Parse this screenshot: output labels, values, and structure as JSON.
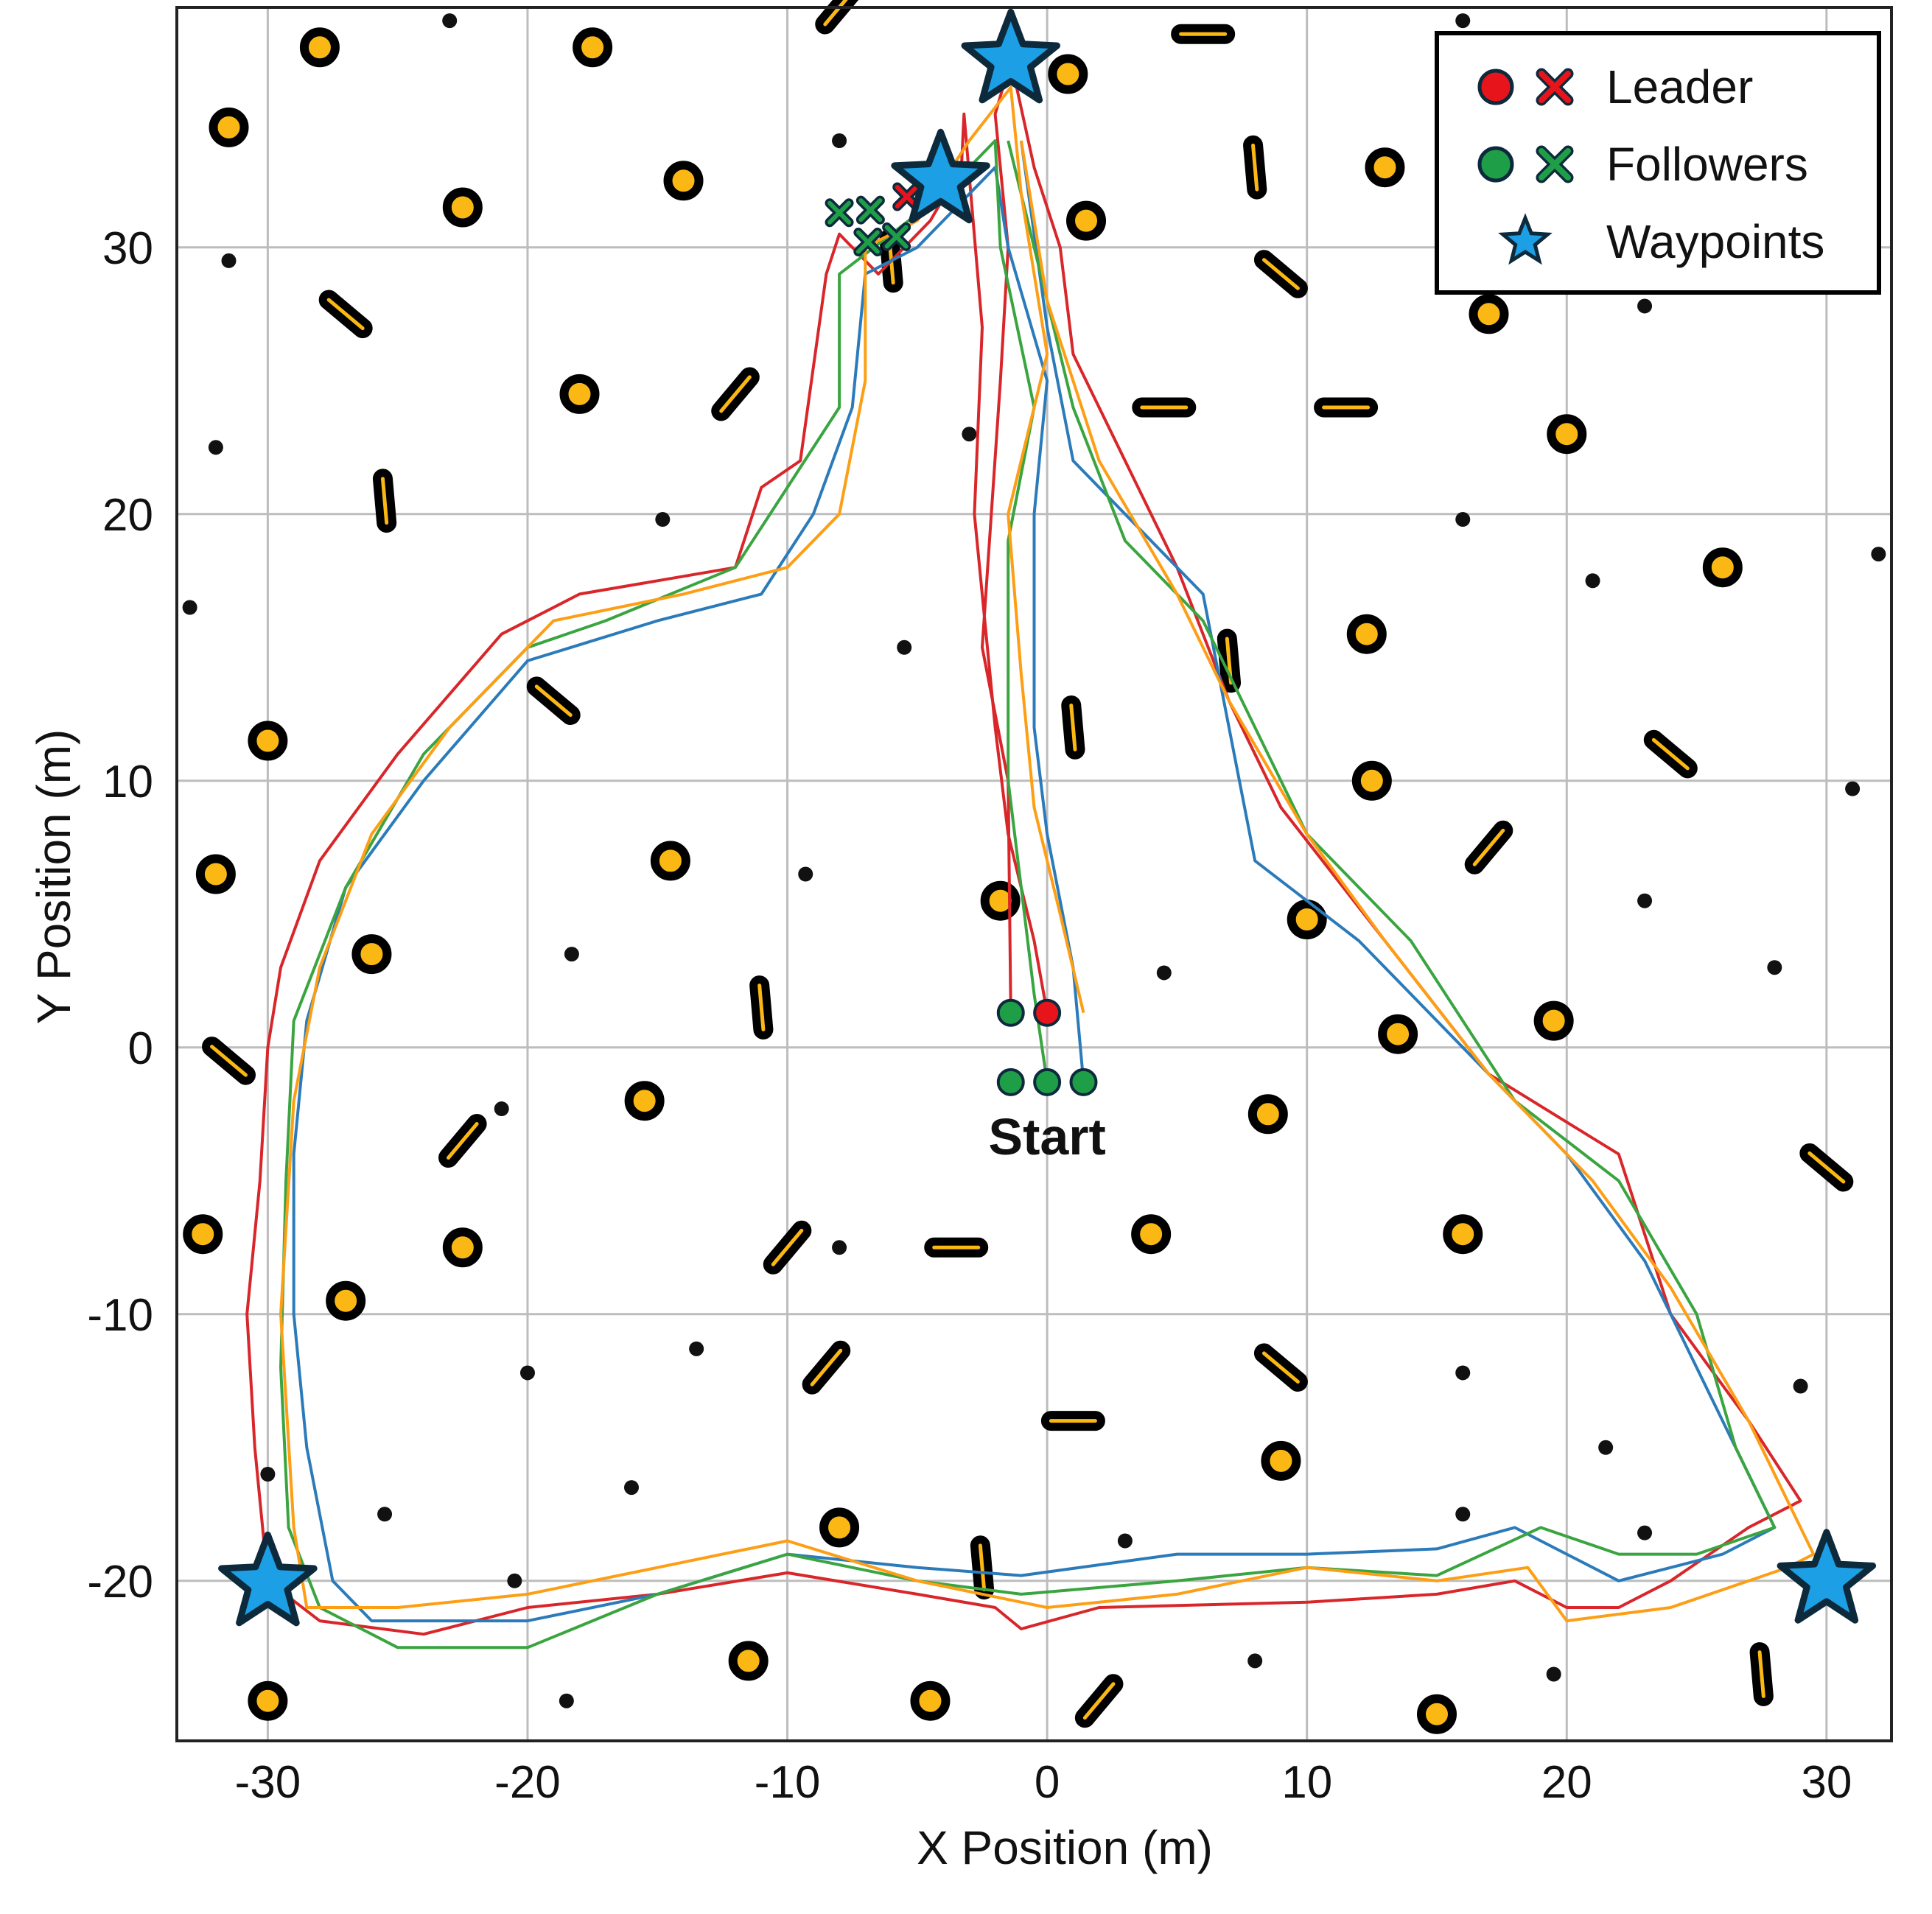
{
  "chart_data": {
    "type": "line",
    "title": "",
    "xlabel": "X Position (m)",
    "ylabel": "Y Position (m)",
    "xlim": [
      -33.5,
      32.5
    ],
    "ylim": [
      -26,
      39
    ],
    "xticks": [
      -30,
      -20,
      -10,
      0,
      10,
      20,
      30
    ],
    "yticks": [
      -20,
      -10,
      0,
      10,
      20,
      30
    ],
    "grid": true,
    "legend": {
      "placement": "top-right",
      "entries": [
        {
          "label": "Leader",
          "marker": "circle+cross",
          "color": "#e8141c"
        },
        {
          "label": "Followers",
          "marker": "circle+cross",
          "color": "#1f9e48"
        },
        {
          "label": "Waypoints",
          "marker": "star",
          "color": "#1c9fe4"
        }
      ]
    },
    "annotations": [
      {
        "text": "Start",
        "x": 0,
        "y": -3.4
      }
    ],
    "colors": {
      "leader": "#e8141c",
      "follower": "#1f9e48",
      "waypoint": "#1c9fe4",
      "obstacle": "#fbb814",
      "outline": "#000000",
      "star_edge": "#0d2a3c",
      "blue_path": "#2b7bba",
      "orange_path": "#fd9e14",
      "green_path": "#3aa540",
      "red_path": "#d8262a",
      "grid": "#bdbdbd"
    },
    "waypoints": [
      [
        -1.4,
        37.0
      ],
      [
        -4.1,
        32.5
      ],
      [
        -30.0,
        -20.1
      ],
      [
        30.0,
        -20.0
      ]
    ],
    "start_markers": {
      "leader": [
        [
          0.0,
          1.3
        ]
      ],
      "followers": [
        [
          -1.4,
          1.3
        ],
        [
          -1.4,
          -1.3
        ],
        [
          0.0,
          -1.3
        ],
        [
          1.4,
          -1.3
        ]
      ]
    },
    "end_markers": {
      "leader": [
        [
          -5.4,
          31.9
        ]
      ],
      "followers": [
        [
          -8.0,
          31.3
        ],
        [
          -6.8,
          31.4
        ],
        [
          -6.9,
          30.2
        ],
        [
          -5.8,
          30.4
        ]
      ]
    },
    "series": [
      {
        "color": "#d8262a",
        "points": [
          [
            0.0,
            1.3
          ],
          [
            -0.5,
            4
          ],
          [
            -1.5,
            8
          ],
          [
            -2.0,
            12
          ],
          [
            -2.8,
            20
          ],
          [
            -2.5,
            27
          ],
          [
            -3.2,
            35
          ],
          [
            -3.3,
            33
          ],
          [
            -4.5,
            31
          ],
          [
            -6.5,
            29
          ],
          [
            -8.0,
            30.5
          ],
          [
            -8.5,
            29
          ],
          [
            -9.5,
            22
          ],
          [
            -11,
            21
          ],
          [
            -12,
            18
          ],
          [
            -18,
            17
          ],
          [
            -21,
            15.5
          ],
          [
            -25,
            11
          ],
          [
            -28,
            7
          ],
          [
            -29.5,
            3
          ],
          [
            -30,
            0
          ],
          [
            -30.3,
            -5
          ],
          [
            -30.8,
            -10
          ],
          [
            -30.5,
            -15
          ],
          [
            -30,
            -20
          ],
          [
            -28,
            -21.5
          ],
          [
            -24,
            -22
          ],
          [
            -20,
            -21
          ],
          [
            -15,
            -20.5
          ],
          [
            -10,
            -19.7
          ],
          [
            -5,
            -20.5
          ],
          [
            -2,
            -21
          ],
          [
            -1,
            -21.8
          ],
          [
            2,
            -21
          ],
          [
            10,
            -20.8
          ],
          [
            15,
            -20.5
          ],
          [
            18,
            -20
          ],
          [
            20,
            -21
          ],
          [
            22,
            -21
          ],
          [
            24,
            -20
          ],
          [
            27,
            -18
          ],
          [
            29,
            -17
          ],
          [
            27,
            -14
          ],
          [
            24,
            -10
          ],
          [
            22,
            -4
          ],
          [
            17,
            -1
          ],
          [
            13,
            4
          ],
          [
            9,
            9
          ],
          [
            7,
            13
          ],
          [
            5,
            18
          ],
          [
            3,
            22
          ],
          [
            1,
            26
          ],
          [
            0.5,
            30
          ],
          [
            -0.5,
            33
          ],
          [
            -1.4,
            37
          ],
          [
            -2,
            35
          ],
          [
            -1.5,
            30
          ],
          [
            -1.8,
            25
          ],
          [
            -2.5,
            15
          ],
          [
            -1.5,
            10
          ],
          [
            -1.4,
            1.3
          ]
        ]
      },
      {
        "color": "#2b7bba",
        "points": [
          [
            1.4,
            -1.3
          ],
          [
            1,
            3
          ],
          [
            0,
            8
          ],
          [
            -0.5,
            12
          ],
          [
            -0.5,
            20
          ],
          [
            0,
            25
          ],
          [
            -1.5,
            30
          ],
          [
            -2,
            33
          ],
          [
            -3.5,
            31.5
          ],
          [
            -5,
            30
          ],
          [
            -7,
            29
          ],
          [
            -7.5,
            24
          ],
          [
            -9,
            20
          ],
          [
            -11,
            17
          ],
          [
            -15,
            16
          ],
          [
            -20,
            14.5
          ],
          [
            -24,
            10
          ],
          [
            -27,
            6
          ],
          [
            -28.5,
            1
          ],
          [
            -29,
            -4
          ],
          [
            -29,
            -10
          ],
          [
            -28.5,
            -15
          ],
          [
            -27.5,
            -20
          ],
          [
            -26,
            -21.5
          ],
          [
            -20,
            -21.5
          ],
          [
            -15,
            -20.5
          ],
          [
            -10,
            -19
          ],
          [
            -5,
            -19.5
          ],
          [
            -1,
            -19.8
          ],
          [
            5,
            -19
          ],
          [
            10,
            -19
          ],
          [
            15,
            -18.8
          ],
          [
            18,
            -18
          ],
          [
            20,
            -19
          ],
          [
            22,
            -20
          ],
          [
            26,
            -19
          ],
          [
            28,
            -18
          ],
          [
            26,
            -14
          ],
          [
            23,
            -8
          ],
          [
            20,
            -4
          ],
          [
            16,
            0
          ],
          [
            12,
            4
          ],
          [
            8,
            7
          ],
          [
            7,
            12
          ],
          [
            6,
            17
          ],
          [
            3,
            20
          ],
          [
            1,
            22
          ],
          [
            0,
            27
          ],
          [
            -1,
            34
          ]
        ]
      },
      {
        "color": "#3aa540",
        "points": [
          [
            0,
            -1.3
          ],
          [
            -0.5,
            2
          ],
          [
            -1,
            6
          ],
          [
            -1.5,
            10
          ],
          [
            -1.5,
            19
          ],
          [
            -0.5,
            24
          ],
          [
            -1.8,
            30
          ],
          [
            -2,
            34
          ],
          [
            -4,
            32
          ],
          [
            -6,
            30.5
          ],
          [
            -8,
            29
          ],
          [
            -8,
            24
          ],
          [
            -10,
            21
          ],
          [
            -12,
            18
          ],
          [
            -17,
            16
          ],
          [
            -20,
            15
          ],
          [
            -24,
            11
          ],
          [
            -27,
            6
          ],
          [
            -29,
            1
          ],
          [
            -29.3,
            -5
          ],
          [
            -29.5,
            -12
          ],
          [
            -29.2,
            -18
          ],
          [
            -28,
            -21
          ],
          [
            -25,
            -22.5
          ],
          [
            -20,
            -22.5
          ],
          [
            -15,
            -20.5
          ],
          [
            -10,
            -19
          ],
          [
            -5,
            -20
          ],
          [
            -1,
            -20.5
          ],
          [
            5,
            -20
          ],
          [
            10,
            -19.5
          ],
          [
            15,
            -19.8
          ],
          [
            19,
            -18
          ],
          [
            22,
            -19
          ],
          [
            25,
            -19
          ],
          [
            28,
            -18
          ],
          [
            26.5,
            -15
          ],
          [
            25,
            -10
          ],
          [
            22,
            -5
          ],
          [
            18,
            -2
          ],
          [
            14,
            4
          ],
          [
            10,
            8
          ],
          [
            8,
            12
          ],
          [
            6,
            16
          ],
          [
            3,
            19
          ],
          [
            1,
            24
          ],
          [
            -0.5,
            30
          ],
          [
            -1.5,
            34
          ]
        ]
      },
      {
        "color": "#fd9e14",
        "points": [
          [
            1.4,
            1.3
          ],
          [
            0.5,
            5
          ],
          [
            -0.5,
            9
          ],
          [
            -1,
            14
          ],
          [
            -1.5,
            20
          ],
          [
            0,
            26
          ],
          [
            -1,
            32
          ],
          [
            -1.4,
            36
          ],
          [
            -3,
            34
          ],
          [
            -5,
            31
          ],
          [
            -7,
            30
          ],
          [
            -7,
            25
          ],
          [
            -8,
            20
          ],
          [
            -10,
            18
          ],
          [
            -14,
            17
          ],
          [
            -19,
            16
          ],
          [
            -23,
            12
          ],
          [
            -26,
            8
          ],
          [
            -28,
            3
          ],
          [
            -29,
            -2
          ],
          [
            -29.5,
            -10
          ],
          [
            -29,
            -18
          ],
          [
            -28.5,
            -21
          ],
          [
            -25,
            -21
          ],
          [
            -20,
            -20.5
          ],
          [
            -15,
            -19.5
          ],
          [
            -10,
            -18.5
          ],
          [
            -5,
            -20
          ],
          [
            0,
            -21
          ],
          [
            5,
            -20.5
          ],
          [
            10,
            -19.5
          ],
          [
            15,
            -20
          ],
          [
            18.5,
            -19.5
          ],
          [
            20,
            -21.5
          ],
          [
            24,
            -21
          ],
          [
            28.5,
            -19.5
          ],
          [
            29.5,
            -19
          ],
          [
            27,
            -14
          ],
          [
            24,
            -9
          ],
          [
            21,
            -5
          ],
          [
            17,
            -1
          ],
          [
            13,
            4
          ],
          [
            10,
            8
          ],
          [
            7,
            13
          ],
          [
            5,
            17
          ],
          [
            2,
            22
          ],
          [
            0,
            28
          ],
          [
            -1,
            34
          ]
        ]
      }
    ],
    "obstacles": {
      "circles": [
        [
          -28,
          37.5
        ],
        [
          -17.5,
          37.5
        ],
        [
          -31.5,
          34.5
        ],
        [
          -14,
          32.5
        ],
        [
          -22.5,
          31.5
        ],
        [
          -18,
          24.5
        ],
        [
          -26,
          3.5
        ],
        [
          -30,
          11.5
        ],
        [
          -32,
          6.5
        ],
        [
          -14.5,
          7
        ],
        [
          -1.8,
          5.5
        ],
        [
          -15.5,
          -2
        ],
        [
          -32.5,
          -7
        ],
        [
          -27,
          -9.5
        ],
        [
          -22.5,
          -7.5
        ],
        [
          4,
          -7
        ],
        [
          8.5,
          -2.5
        ],
        [
          13.5,
          0.5
        ],
        [
          10,
          4.8
        ],
        [
          12.5,
          10
        ],
        [
          19.5,
          1
        ],
        [
          26,
          18
        ],
        [
          20,
          23
        ],
        [
          13,
          33
        ],
        [
          0.8,
          36.5
        ],
        [
          1.5,
          31
        ],
        [
          17,
          27.5
        ],
        [
          12.3,
          15.5
        ],
        [
          16,
          -7
        ],
        [
          9,
          -15.5
        ],
        [
          -8,
          -18
        ],
        [
          -11.5,
          -23
        ],
        [
          -4.5,
          -24.5
        ],
        [
          -30,
          -24.5
        ],
        [
          15,
          -25
        ]
      ],
      "bars": [
        [
          -27,
          27.5,
          40
        ],
        [
          -12,
          24.5,
          -50
        ],
        [
          -8,
          39,
          -50
        ],
        [
          -25.5,
          20.5,
          85
        ],
        [
          -19,
          13,
          40
        ],
        [
          -6,
          29.5,
          85
        ],
        [
          1,
          12,
          85
        ],
        [
          7,
          14.5,
          85
        ],
        [
          8,
          33,
          85
        ],
        [
          9,
          29,
          40
        ],
        [
          4.5,
          24,
          0
        ],
        [
          11.5,
          24,
          0
        ],
        [
          6,
          38,
          0
        ],
        [
          24,
          11,
          40
        ],
        [
          17,
          7.5,
          -50
        ],
        [
          -31.5,
          -0.5,
          40
        ],
        [
          -22.5,
          -3.5,
          -50
        ],
        [
          -11,
          1.5,
          85
        ],
        [
          -10,
          -7.5,
          -50
        ],
        [
          -3.5,
          -7.5,
          0
        ],
        [
          9,
          -12,
          40
        ],
        [
          -8.5,
          -12,
          -50
        ],
        [
          1,
          -14,
          0
        ],
        [
          -2.5,
          -19.5,
          85
        ],
        [
          2,
          -24.5,
          -50
        ],
        [
          27.5,
          -23.5,
          85
        ],
        [
          30,
          -4.5,
          40
        ]
      ],
      "dots": [
        [
          -23,
          38.5
        ],
        [
          -8,
          34
        ],
        [
          -31.5,
          29.5
        ],
        [
          -32,
          22.5
        ],
        [
          -33,
          16.5
        ],
        [
          -14.8,
          19.8
        ],
        [
          -5.5,
          15
        ],
        [
          -3,
          23
        ],
        [
          -18.3,
          3.5
        ],
        [
          -9.3,
          6.5
        ],
        [
          -21,
          -2.3
        ],
        [
          4.5,
          2.8
        ],
        [
          16,
          19.8
        ],
        [
          23,
          27.8
        ],
        [
          16,
          38.5
        ],
        [
          21,
          17.5
        ],
        [
          32,
          18.5
        ],
        [
          31,
          9.7
        ],
        [
          23,
          5.5
        ],
        [
          28,
          3
        ],
        [
          -20,
          -12.2
        ],
        [
          -13.5,
          -11.3
        ],
        [
          -30,
          -16
        ],
        [
          -25.5,
          -17.5
        ],
        [
          -20.5,
          -20
        ],
        [
          -16,
          -16.5
        ],
        [
          -18.5,
          -24.5
        ],
        [
          3,
          -18.5
        ],
        [
          8,
          -23
        ],
        [
          16,
          -12.2
        ],
        [
          16,
          -17.5
        ],
        [
          19.5,
          -23.5
        ],
        [
          21.5,
          -15
        ],
        [
          23,
          -18.2
        ],
        [
          29,
          -12.7
        ],
        [
          -8,
          -7.5
        ]
      ]
    }
  }
}
